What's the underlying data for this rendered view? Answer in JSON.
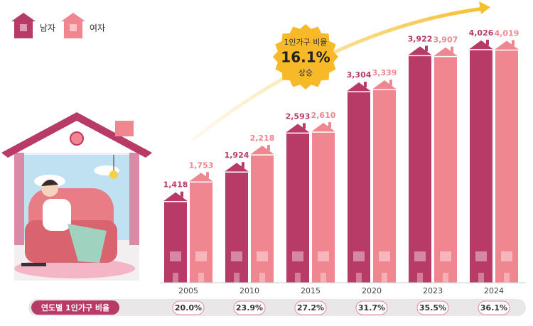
{
  "chart_data": {
    "type": "bar",
    "categories": [
      "2005",
      "2010",
      "2015",
      "2020",
      "2023",
      "2024"
    ],
    "series": [
      {
        "name": "남자",
        "color": "#b83a66",
        "values": [
          1418,
          1924,
          2593,
          3304,
          3922,
          4026
        ],
        "value_labels": [
          "1,418",
          "1,924",
          "2,593",
          "3,304",
          "3,922",
          "4,026"
        ]
      },
      {
        "name": "여자",
        "color": "#f0868f",
        "values": [
          1753,
          2218,
          2610,
          3339,
          3907,
          4019
        ],
        "value_labels": [
          "1,753",
          "2,218",
          "2,610",
          "3,339",
          "3,907",
          "4,019"
        ]
      }
    ],
    "rate": {
      "title": "연도별 1인가구 비율",
      "values": [
        20.0,
        23.9,
        27.2,
        31.7,
        35.5,
        36.1
      ],
      "value_labels": [
        "20.0%",
        "23.9%",
        "27.2%",
        "31.7%",
        "35.5%",
        "36.1%"
      ]
    },
    "annotation": {
      "title": "1인가구 비율",
      "value": 16.1,
      "value_label": "16.1%",
      "note": "상승"
    }
  }
}
